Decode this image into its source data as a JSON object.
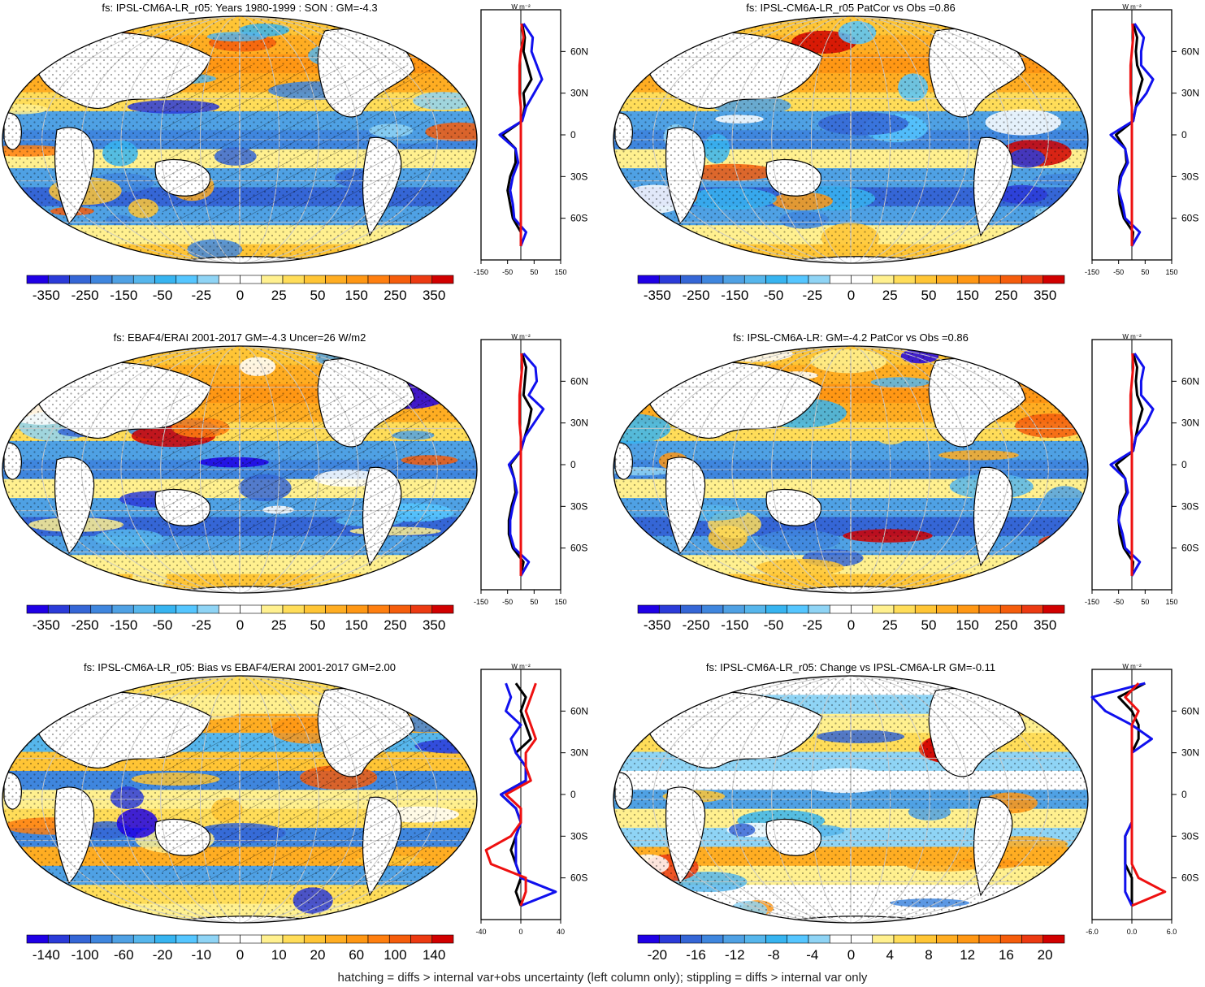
{
  "panels": [
    {
      "title": "fs: IPSL-CM6A-LR_r05: Years 1980-1999 : SON : GM=-4.3",
      "scale_key": "main",
      "hatch": true,
      "stipple": true,
      "profile": {
        "xticks": [
          "-150",
          "-50",
          "50",
          "150"
        ],
        "range": [
          -150,
          150
        ]
      }
    },
    {
      "title": "fs: IPSL-CM6A-LR_r05 PatCor vs Obs =0.86",
      "scale_key": "main",
      "hatch": false,
      "stipple": true,
      "profile": {
        "xticks": [
          "-150",
          "-50",
          "50",
          "150"
        ],
        "range": [
          -150,
          150
        ]
      }
    },
    {
      "title": "fs: EBAF4/ERAI 2001-2017 GM=-4.3 Uncer=26 W/m2",
      "scale_key": "main",
      "hatch": true,
      "stipple": true,
      "profile": {
        "xticks": [
          "-150",
          "-50",
          "50",
          "150"
        ],
        "range": [
          -150,
          150
        ]
      }
    },
    {
      "title": "fs: IPSL-CM6A-LR: GM=-4.2 PatCor vs Obs =0.86",
      "scale_key": "main",
      "hatch": false,
      "stipple": true,
      "profile": {
        "xticks": [
          "-150",
          "-50",
          "50",
          "150"
        ],
        "range": [
          -150,
          150
        ]
      }
    },
    {
      "title": "fs: IPSL-CM6A-LR_r05: Bias vs EBAF4/ERAI 2001-2017  GM=2.00",
      "scale_key": "bias",
      "hatch": true,
      "stipple": true,
      "profile": {
        "xticks": [
          "-40",
          "0",
          "40"
        ],
        "range": [
          -40,
          40
        ]
      }
    },
    {
      "title": "fs: IPSL-CM6A-LR_r05: Change vs IPSL-CM6A-LR GM=-0.11",
      "scale_key": "change",
      "hatch": false,
      "stipple": true,
      "profile": {
        "xticks": [
          "-6.0",
          "0.0",
          "6.0"
        ],
        "range": [
          -6,
          6
        ]
      }
    }
  ],
  "colorbars": {
    "main": [
      "-350",
      "-250",
      "-150",
      "-50",
      "-25",
      "0",
      "25",
      "50",
      "150",
      "250",
      "350"
    ],
    "bias": [
      "-140",
      "-100",
      "-60",
      "-20",
      "-10",
      "0",
      "10",
      "20",
      "60",
      "100",
      "140"
    ],
    "change": [
      "-20",
      "-16",
      "-12",
      "-8",
      "-4",
      "0",
      "4",
      "8",
      "12",
      "16",
      "20"
    ]
  },
  "palette": [
    "#1f00e6",
    "#2b3bd9",
    "#3566d6",
    "#3f86de",
    "#4fa1e4",
    "#56b6ec",
    "#37b4f0",
    "#55c6ff",
    "#8fd4f5",
    "#ffffff",
    "#ffffff",
    "#fff08f",
    "#ffdd59",
    "#ffc535",
    "#ffad22",
    "#ff9714",
    "#ff7f10",
    "#f55d0c",
    "#ec3a12",
    "#d10000"
  ],
  "lat_labels": [
    "60N",
    "30N",
    "0",
    "30S",
    "60S"
  ],
  "units_label": "W m⁻²",
  "footer": "hatching = diffs > internal var+obs uncertainty (left column only); stippling = diffs > internal var only",
  "chart_data": [
    {
      "type": "line",
      "title": "fs: IPSL-CM6A-LR_r05: Years 1980-1999 : SON : GM=-4.3",
      "y_labels": [
        "60N",
        "30N",
        "0",
        "30S",
        "60S"
      ],
      "xlim": [
        -150,
        150
      ],
      "lat": [
        80,
        70,
        60,
        50,
        40,
        30,
        20,
        10,
        0,
        -10,
        -20,
        -30,
        -40,
        -50,
        -60,
        -70,
        -80
      ],
      "series": [
        {
          "color": "#000000",
          "values": [
            5,
            15,
            10,
            25,
            40,
            10,
            15,
            5,
            -70,
            -20,
            -20,
            -40,
            -50,
            -40,
            -30,
            0,
            0
          ]
        },
        {
          "color": "#1010ee",
          "values": [
            10,
            45,
            40,
            60,
            80,
            50,
            20,
            5,
            -80,
            -20,
            -10,
            -30,
            -40,
            -30,
            -25,
            20,
            0
          ]
        },
        {
          "color": "#ee1010",
          "values": [
            2,
            10,
            0,
            -5,
            -5,
            -5,
            0,
            0,
            0,
            0,
            0,
            0,
            0,
            0,
            0,
            0,
            0
          ]
        }
      ]
    },
    {
      "type": "line",
      "title": "fs: IPSL-CM6A-LR_r05 PatCor vs Obs =0.86",
      "y_labels": [
        "60N",
        "30N",
        "0",
        "30S",
        "60S"
      ],
      "xlim": [
        -150,
        150
      ],
      "lat": [
        80,
        70,
        60,
        50,
        40,
        30,
        20,
        10,
        0,
        -10,
        -20,
        -30,
        -40,
        -50,
        -60,
        -70,
        -80
      ],
      "series": [
        {
          "color": "#000000",
          "values": [
            5,
            20,
            15,
            20,
            40,
            25,
            15,
            5,
            -60,
            -25,
            -20,
            -45,
            -50,
            -45,
            -30,
            5,
            0
          ]
        },
        {
          "color": "#1010ee",
          "values": [
            10,
            45,
            35,
            35,
            80,
            55,
            15,
            5,
            -80,
            -25,
            -15,
            -40,
            -50,
            -35,
            -25,
            30,
            0
          ]
        },
        {
          "color": "#ee1010",
          "values": [
            2,
            5,
            0,
            -5,
            -5,
            -5,
            0,
            0,
            0,
            0,
            0,
            0,
            0,
            0,
            0,
            0,
            0
          ]
        }
      ]
    },
    {
      "type": "line",
      "title": "fs: EBAF4/ERAI 2001-2017 GM=-4.3 Uncer=26 W/m2",
      "y_labels": [
        "60N",
        "30N",
        "0",
        "30S",
        "60S"
      ],
      "xlim": [
        -150,
        150
      ],
      "lat": [
        80,
        70,
        60,
        50,
        40,
        30,
        20,
        10,
        0,
        -10,
        -20,
        -30,
        -40,
        -50,
        -60,
        -70,
        -80
      ],
      "series": [
        {
          "color": "#000000",
          "values": [
            5,
            20,
            15,
            10,
            40,
            30,
            15,
            0,
            -40,
            -25,
            -20,
            -35,
            -45,
            -45,
            -30,
            10,
            0
          ]
        },
        {
          "color": "#1010ee",
          "values": [
            10,
            55,
            60,
            30,
            85,
            50,
            15,
            0,
            -45,
            -25,
            -15,
            -30,
            -40,
            -40,
            -25,
            30,
            0
          ]
        },
        {
          "color": "#ee1010",
          "values": [
            2,
            5,
            0,
            -5,
            -5,
            -5,
            0,
            0,
            0,
            0,
            0,
            0,
            0,
            0,
            0,
            0,
            0
          ]
        }
      ]
    },
    {
      "type": "line",
      "title": "fs: IPSL-CM6A-LR: GM=-4.2 PatCor vs Obs =0.86",
      "y_labels": [
        "60N",
        "30N",
        "0",
        "30S",
        "60S"
      ],
      "xlim": [
        -150,
        150
      ],
      "lat": [
        80,
        70,
        60,
        50,
        40,
        30,
        20,
        10,
        0,
        -10,
        -20,
        -30,
        -40,
        -50,
        -60,
        -70,
        -80
      ],
      "series": [
        {
          "color": "#000000",
          "values": [
            5,
            20,
            15,
            20,
            40,
            25,
            15,
            5,
            -60,
            -25,
            -20,
            -45,
            -50,
            -45,
            -30,
            5,
            0
          ]
        },
        {
          "color": "#1010ee",
          "values": [
            10,
            45,
            35,
            35,
            80,
            55,
            15,
            5,
            -80,
            -25,
            -15,
            -40,
            -50,
            -35,
            -25,
            30,
            0
          ]
        },
        {
          "color": "#ee1010",
          "values": [
            2,
            5,
            0,
            -5,
            -5,
            -5,
            0,
            0,
            0,
            0,
            0,
            0,
            0,
            0,
            0,
            0,
            0
          ]
        }
      ]
    },
    {
      "type": "line",
      "title": "fs: IPSL-CM6A-LR_r05: Bias vs EBAF4/ERAI 2001-2017  GM=2.00",
      "y_labels": [
        "60N",
        "30N",
        "0",
        "30S",
        "60S"
      ],
      "xlim": [
        -40,
        40
      ],
      "lat": [
        80,
        70,
        60,
        50,
        40,
        30,
        20,
        10,
        0,
        -10,
        -20,
        -30,
        -40,
        -50,
        -60,
        -70,
        -80
      ],
      "series": [
        {
          "color": "#000000",
          "values": [
            -5,
            5,
            0,
            5,
            10,
            -5,
            5,
            5,
            -20,
            -5,
            0,
            -5,
            -10,
            -5,
            0,
            -5,
            0
          ]
        },
        {
          "color": "#1010ee",
          "values": [
            -15,
            -10,
            -15,
            0,
            -10,
            -5,
            5,
            5,
            -20,
            -5,
            0,
            -5,
            -5,
            -5,
            0,
            35,
            0
          ]
        },
        {
          "color": "#ee1010",
          "values": [
            15,
            10,
            5,
            10,
            15,
            5,
            5,
            10,
            -15,
            0,
            0,
            -10,
            -35,
            -30,
            5,
            5,
            0
          ]
        }
      ]
    },
    {
      "type": "line",
      "title": "fs: IPSL-CM6A-LR_r05: Change vs IPSL-CM6A-LR GM=-0.11",
      "y_labels": [
        "60N",
        "30N",
        "0",
        "30S",
        "60S"
      ],
      "xlim": [
        -6,
        6
      ],
      "lat": [
        80,
        70,
        60,
        50,
        40,
        30,
        20,
        10,
        0,
        -10,
        -20,
        -30,
        -40,
        -50,
        -60,
        -70,
        -80
      ],
      "series": [
        {
          "color": "#000000",
          "values": [
            2,
            -2,
            0,
            1,
            1,
            0,
            0,
            0,
            0,
            0,
            0,
            -1,
            -1,
            -1,
            0,
            0,
            0
          ]
        },
        {
          "color": "#1010ee",
          "values": [
            2,
            -7,
            -4,
            0,
            3,
            0,
            0,
            0,
            0,
            0,
            0,
            -1,
            -1,
            -1,
            -1,
            -1,
            0
          ]
        },
        {
          "color": "#ee1010",
          "values": [
            1,
            -1,
            1,
            0,
            0,
            0,
            0,
            0,
            0,
            0,
            0,
            0,
            0,
            0,
            1,
            5,
            0
          ]
        }
      ]
    }
  ]
}
